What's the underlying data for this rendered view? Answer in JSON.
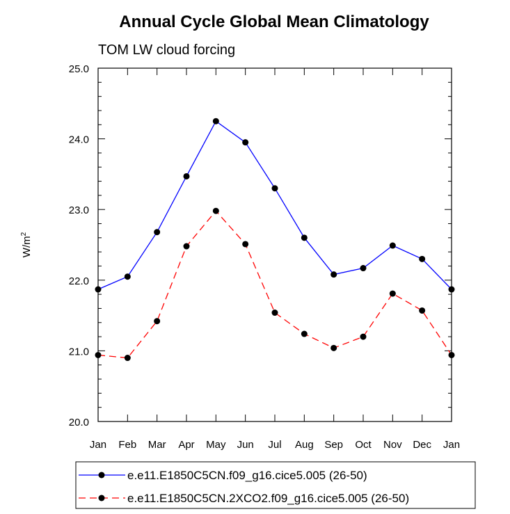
{
  "chart_data": {
    "type": "line",
    "title": "Annual Cycle Global Mean Climatology",
    "subtitle": "TOM LW cloud forcing",
    "ylabel": "W/m",
    "ylabel_sup": "2",
    "xlabel": "",
    "categories": [
      "Jan",
      "Feb",
      "Mar",
      "Apr",
      "May",
      "Jun",
      "Jul",
      "Aug",
      "Sep",
      "Oct",
      "Nov",
      "Dec",
      "Jan"
    ],
    "ylim": [
      20.0,
      25.0
    ],
    "yticks": [
      "20.0",
      "21.0",
      "22.0",
      "23.0",
      "24.0",
      "25.0"
    ],
    "grid": false,
    "legend_position": "bottom",
    "series": [
      {
        "name": "e.e11.E1850C5CN.f09_g16.cice5.005 (26-50)",
        "color": "#0000ff",
        "dash": "solid",
        "values": [
          21.87,
          22.05,
          22.68,
          23.47,
          24.25,
          23.95,
          23.3,
          22.6,
          22.08,
          22.17,
          22.49,
          22.3,
          21.87
        ]
      },
      {
        "name": "e.e11.E1850C5CN.2XCO2.f09_g16.cice5.005 (26-50)",
        "color": "#ff0000",
        "dash": "dashed",
        "values": [
          20.94,
          20.9,
          21.42,
          22.48,
          22.98,
          22.51,
          21.54,
          21.24,
          21.04,
          21.2,
          21.81,
          21.57,
          20.94
        ]
      }
    ]
  }
}
